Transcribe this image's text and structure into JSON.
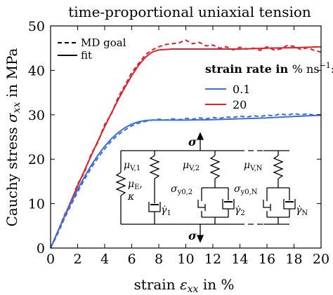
{
  "chart_data": {
    "type": "line",
    "title": "time-proportional uniaxial tension",
    "xlabel": "strain ε_xx in %",
    "ylabel": "Cauchy stress σ_xx in MPa",
    "xlim": [
      0,
      20
    ],
    "ylim": [
      0,
      50
    ],
    "x_ticks": [
      "0",
      "2",
      "4",
      "6",
      "8",
      "10",
      "12",
      "14",
      "16",
      "18",
      "20"
    ],
    "y_ticks": [
      "0",
      "10",
      "20",
      "30",
      "40",
      "50"
    ],
    "grid": false,
    "legend": {
      "placement": "top-left",
      "line_style_entries": [
        {
          "label": "MD goal",
          "style": "dashed"
        },
        {
          "label": "fit",
          "style": "solid"
        }
      ],
      "rate_title": "strain rate in % ns⁻¹:",
      "rate_entries": [
        {
          "label": "0.1",
          "color": "#3b6fd8"
        },
        {
          "label": "20",
          "color": "#e0202a"
        }
      ]
    },
    "series": [
      {
        "name": "20",
        "style": "solid",
        "color": "#e0202a",
        "points": [
          [
            0,
            0
          ],
          [
            0.5,
            3.5
          ],
          [
            1,
            7
          ],
          [
            1.5,
            10.5
          ],
          [
            2,
            14
          ],
          [
            2.5,
            17.4
          ],
          [
            3,
            20.8
          ],
          [
            3.5,
            24.1
          ],
          [
            4,
            27.3
          ],
          [
            4.5,
            30.4
          ],
          [
            5,
            33.4
          ],
          [
            5.5,
            36.2
          ],
          [
            6,
            38.8
          ],
          [
            6.5,
            41.1
          ],
          [
            7,
            42.9
          ],
          [
            7.5,
            44.1
          ],
          [
            8,
            44.6
          ],
          [
            9,
            44.8
          ],
          [
            10,
            44.8
          ],
          [
            12,
            44.8
          ],
          [
            14,
            44.8
          ],
          [
            16,
            45.0
          ],
          [
            18,
            45.1
          ],
          [
            20,
            45.3
          ]
        ]
      },
      {
        "name": "20",
        "style": "dashed",
        "color": "#e0202a",
        "points": [
          [
            0,
            0
          ],
          [
            0.5,
            3.3
          ],
          [
            1,
            7.3
          ],
          [
            1.5,
            10.2
          ],
          [
            2,
            14.4
          ],
          [
            2.5,
            17.0
          ],
          [
            3,
            21.2
          ],
          [
            3.5,
            23.8
          ],
          [
            4,
            27.8
          ],
          [
            4.5,
            30.2
          ],
          [
            5,
            34.0
          ],
          [
            5.5,
            36.6
          ],
          [
            6,
            39.5
          ],
          [
            6.5,
            41.5
          ],
          [
            7,
            43.5
          ],
          [
            7.5,
            44.6
          ],
          [
            8,
            45.3
          ],
          [
            8.5,
            45.8
          ],
          [
            9,
            46.0
          ],
          [
            9.5,
            46.2
          ],
          [
            10,
            46.8
          ],
          [
            10.5,
            46.0
          ],
          [
            11,
            46.3
          ],
          [
            11.5,
            45.5
          ],
          [
            12,
            45.7
          ],
          [
            12.5,
            45.0
          ],
          [
            13,
            45.3
          ],
          [
            13.5,
            44.6
          ],
          [
            14,
            45.2
          ],
          [
            14.5,
            44.8
          ],
          [
            15,
            45.0
          ],
          [
            15.5,
            44.5
          ],
          [
            16,
            45.3
          ],
          [
            16.5,
            44.6
          ],
          [
            17,
            44.8
          ],
          [
            17.5,
            45.6
          ],
          [
            18,
            45.4
          ],
          [
            18.5,
            44.7
          ],
          [
            19,
            45.1
          ],
          [
            19.5,
            44.5
          ],
          [
            20,
            44.1
          ]
        ]
      },
      {
        "name": "0.1",
        "style": "solid",
        "color": "#3b6fd8",
        "points": [
          [
            0,
            0
          ],
          [
            0.5,
            3.4
          ],
          [
            1,
            6.9
          ],
          [
            1.5,
            10.1
          ],
          [
            2,
            13.2
          ],
          [
            2.5,
            16.0
          ],
          [
            3,
            18.6
          ],
          [
            3.5,
            20.9
          ],
          [
            4,
            22.9
          ],
          [
            4.5,
            24.6
          ],
          [
            5,
            26.0
          ],
          [
            5.5,
            27.1
          ],
          [
            6,
            27.9
          ],
          [
            6.5,
            28.4
          ],
          [
            7,
            28.7
          ],
          [
            7.5,
            28.8
          ],
          [
            8,
            28.8
          ],
          [
            9,
            28.8
          ],
          [
            10,
            28.8
          ],
          [
            12,
            28.9
          ],
          [
            14,
            29.1
          ],
          [
            16,
            29.3
          ],
          [
            18,
            29.6
          ],
          [
            20,
            29.9
          ]
        ]
      },
      {
        "name": "0.1",
        "style": "dashed",
        "color": "#3b6fd8",
        "points": [
          [
            0,
            0
          ],
          [
            0.5,
            3.0
          ],
          [
            1,
            6.5
          ],
          [
            1.5,
            9.6
          ],
          [
            2,
            12.6
          ],
          [
            2.5,
            15.4
          ],
          [
            3,
            18.0
          ],
          [
            3.5,
            20.3
          ],
          [
            4,
            22.3
          ],
          [
            4.5,
            24.1
          ],
          [
            5,
            25.5
          ],
          [
            5.5,
            26.6
          ],
          [
            6,
            27.5
          ],
          [
            6.5,
            28.1
          ],
          [
            7,
            28.5
          ],
          [
            7.5,
            28.8
          ],
          [
            8,
            29.0
          ],
          [
            8.5,
            28.8
          ],
          [
            9,
            29.1
          ],
          [
            9.5,
            28.9
          ],
          [
            10,
            29.2
          ],
          [
            10.5,
            29.0
          ],
          [
            11,
            29.3
          ],
          [
            11.5,
            29.1
          ],
          [
            12,
            29.4
          ],
          [
            12.5,
            29.2
          ],
          [
            13,
            29.5
          ],
          [
            13.5,
            29.4
          ],
          [
            14,
            29.7
          ],
          [
            14.5,
            29.5
          ],
          [
            15,
            29.8
          ],
          [
            15.5,
            29.6
          ],
          [
            16,
            29.9
          ],
          [
            16.5,
            29.8
          ],
          [
            17,
            30.2
          ],
          [
            17.5,
            29.9
          ],
          [
            18,
            30.3
          ],
          [
            18.5,
            30.0
          ],
          [
            19,
            30.2
          ],
          [
            19.5,
            29.9
          ],
          [
            20,
            30.0
          ]
        ]
      }
    ],
    "inset_diagram": {
      "description_labels": {
        "sigma_top": "σ",
        "sigma_bottom": "σ",
        "mu_v1": "μV,1",
        "mu_v2": "μV,2",
        "mu_vN": "μV,N",
        "mu_e": "μE,",
        "kappa": "κ",
        "sigma_y02": "σy0,2",
        "sigma_y0N": "σy0,N",
        "gamma1": "γ̇1",
        "gamma2": "γ̇2",
        "gammaN": "γ̇N"
      }
    }
  }
}
